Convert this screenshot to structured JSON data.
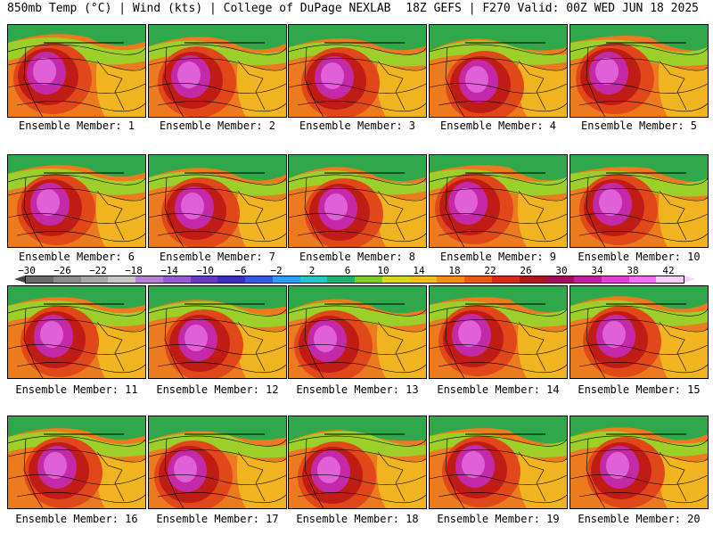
{
  "header": {
    "left": "850mb Temp (°C) | Wind (kts) | College of DuPage NEXLAB",
    "right": "18Z GEFS | F270 Valid: 00Z WED JUN 18 2025"
  },
  "colorbar": {
    "ticks": [
      "−30",
      "−26",
      "−22",
      "−18",
      "−14",
      "−10",
      "−6",
      "−2",
      "2",
      "6",
      "10",
      "14",
      "18",
      "22",
      "26",
      "30",
      "34",
      "38",
      "42"
    ],
    "colors": [
      "#6b6b6b",
      "#8c8c8c",
      "#a8a8a8",
      "#c8c8c8",
      "#b87fd6",
      "#9a5cc8",
      "#6a3dbf",
      "#3c2fb8",
      "#2f5fe0",
      "#2fa0f0",
      "#25c8c8",
      "#20b070",
      "#7ccc2c",
      "#d8d820",
      "#f0c020",
      "#f09018",
      "#e85a18",
      "#d82a1a",
      "#b01818",
      "#a01060",
      "#c020a0",
      "#e040d0",
      "#f070f0",
      "#f6d0f6"
    ]
  },
  "panels": [
    {
      "caption": "Ensemble Member: 1"
    },
    {
      "caption": "Ensemble Member: 2"
    },
    {
      "caption": "Ensemble Member: 3"
    },
    {
      "caption": "Ensemble Member: 4"
    },
    {
      "caption": "Ensemble Member: 5"
    },
    {
      "caption": "Ensemble Member: 6"
    },
    {
      "caption": "Ensemble Member: 7"
    },
    {
      "caption": "Ensemble Member: 8"
    },
    {
      "caption": "Ensemble Member: 9"
    },
    {
      "caption": "Ensemble Member: 10"
    },
    {
      "caption": "Ensemble Member: 11"
    },
    {
      "caption": "Ensemble Member: 12"
    },
    {
      "caption": "Ensemble Member: 13"
    },
    {
      "caption": "Ensemble Member: 14"
    },
    {
      "caption": "Ensemble Member: 15"
    },
    {
      "caption": "Ensemble Member: 16"
    },
    {
      "caption": "Ensemble Member: 17"
    },
    {
      "caption": "Ensemble Member: 18"
    },
    {
      "caption": "Ensemble Member: 19"
    },
    {
      "caption": "Ensemble Member: 20"
    }
  ]
}
